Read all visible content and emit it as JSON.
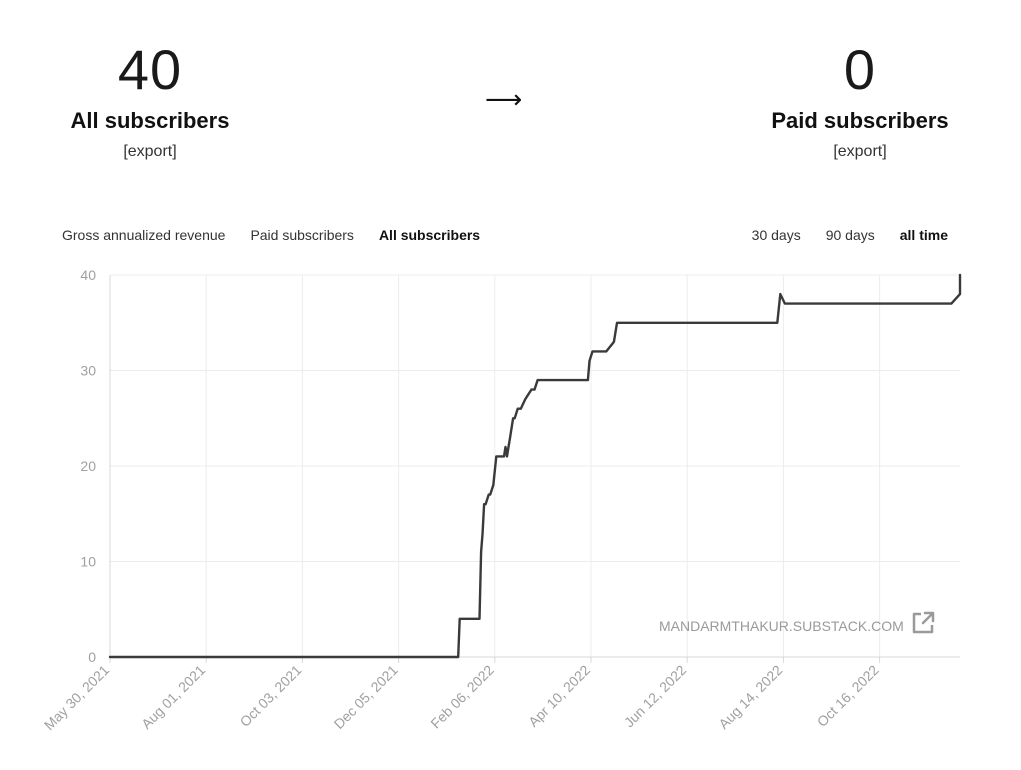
{
  "stats": {
    "all_subscribers": {
      "count": "40",
      "label": "All subscribers",
      "export_label": "[export]"
    },
    "arrow": "⟶",
    "paid_subscribers": {
      "count": "0",
      "label": "Paid subscribers",
      "export_label": "[export]"
    }
  },
  "metric_tabs": [
    {
      "label": "Gross annualized revenue",
      "active": false
    },
    {
      "label": "Paid subscribers",
      "active": false
    },
    {
      "label": "All subscribers",
      "active": true
    }
  ],
  "range_tabs": [
    {
      "label": "30 days",
      "active": false
    },
    {
      "label": "90 days",
      "active": false
    },
    {
      "label": "all time",
      "active": true
    }
  ],
  "watermark": {
    "text": "MANDARMTHAKUR.SUBSTACK.COM",
    "icon": "external-link-icon"
  },
  "colors": {
    "line": "#3a3a3a",
    "grid": "#ececec",
    "axis_text": "#a0a0a0",
    "watermark": "#9a9a9a"
  },
  "chart_data": {
    "type": "line",
    "series": [
      {
        "x": [
          "2021-05-30",
          "2022-01-13",
          "2022-01-14",
          "2022-01-27",
          "2022-01-28",
          "2022-01-29",
          "2022-01-30",
          "2022-01-31",
          "2022-02-02",
          "2022-02-03",
          "2022-02-05",
          "2022-02-07",
          "2022-02-12",
          "2022-02-13",
          "2022-02-14",
          "2022-02-15",
          "2022-02-16",
          "2022-02-17",
          "2022-02-18",
          "2022-02-19",
          "2022-02-21",
          "2022-02-23",
          "2022-02-26",
          "2022-03-02",
          "2022-03-04",
          "2022-03-06",
          "2022-03-09",
          "2022-04-08",
          "2022-04-09",
          "2022-04-11",
          "2022-04-20",
          "2022-04-25",
          "2022-04-27",
          "2022-08-10",
          "2022-08-12",
          "2022-08-15",
          "2022-12-02",
          "2022-12-22",
          "2022-12-25",
          "2023-01-01"
        ],
        "values": [
          0,
          0,
          4,
          4,
          11,
          13,
          16,
          16,
          17,
          17,
          18,
          21,
          21,
          22,
          21,
          22,
          23,
          24,
          25,
          25,
          26,
          26,
          27,
          28,
          28,
          29,
          29,
          29,
          31,
          32,
          32,
          33,
          35,
          35,
          38,
          37,
          37,
          38,
          40,
          40
        ]
      }
    ],
    "x_tick_labels": [
      "May 30, 2021",
      "Aug 01, 2021",
      "Oct 03, 2021",
      "Dec 05, 2021",
      "Feb 06, 2022",
      "Apr 10, 2022",
      "Jun 12, 2022",
      "Aug 14, 2022",
      "Oct 16, 2022"
    ],
    "y_ticks": [
      0,
      10,
      20,
      30,
      40
    ],
    "ylim": [
      0,
      40
    ],
    "xlabel": "",
    "ylabel": "",
    "title": "",
    "grid": true,
    "legend": "none"
  }
}
